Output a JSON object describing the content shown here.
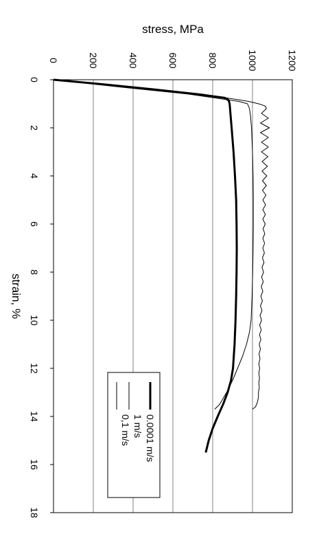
{
  "chart_data": {
    "type": "line",
    "orientation": "rotated-90-clockwise",
    "xlabel": "strain,  %",
    "ylabel": "stress,  MPa",
    "xlim": [
      0,
      18
    ],
    "ylim": [
      0,
      1200
    ],
    "xticks": [
      "0",
      "2",
      "4",
      "6",
      "8",
      "10",
      "12",
      "14",
      "16",
      "18"
    ],
    "yticks": [
      "0",
      "200",
      "400",
      "600",
      "800",
      "1000",
      "1200"
    ],
    "grid": true,
    "legend_position": "lower-right",
    "series": [
      {
        "name": "0.0001 m/s",
        "style": "thick",
        "x": [
          0,
          0.2,
          0.4,
          0.6,
          0.75,
          0.85,
          1.0,
          2.0,
          3.0,
          4.0,
          5.0,
          6.0,
          7.0,
          8.0,
          9.0,
          10.0,
          11.0,
          12.0,
          12.5,
          13.0,
          13.5,
          14.0,
          14.5,
          15.0,
          15.5
        ],
        "y": [
          0,
          260,
          500,
          720,
          860,
          880,
          885,
          895,
          905,
          912,
          918,
          920,
          921,
          920,
          918,
          915,
          910,
          902,
          892,
          875,
          852,
          825,
          800,
          780,
          765
        ]
      },
      {
        "name": "1 m/s",
        "style": "thin",
        "x": [
          0,
          0.3,
          0.6,
          0.9,
          1.0,
          1.05,
          1.1,
          1.2,
          1.4,
          1.6,
          1.8,
          2.0,
          2.2,
          2.4,
          2.6,
          2.8,
          3.0,
          3.2,
          3.4,
          3.6,
          3.8,
          4.0,
          4.2,
          4.4,
          4.6,
          4.8,
          5.0,
          5.2,
          5.4,
          5.6,
          5.8,
          6.0,
          6.2,
          6.4,
          6.6,
          6.8,
          7.0,
          7.2,
          7.4,
          7.6,
          7.8,
          8.0,
          8.2,
          8.4,
          8.6,
          8.8,
          9.0,
          9.2,
          9.4,
          9.6,
          9.8,
          10.0,
          10.2,
          10.4,
          10.6,
          10.8,
          11.0,
          11.2,
          11.4,
          11.6,
          11.8,
          12.0,
          12.2,
          12.4,
          12.6,
          12.8,
          13.0,
          13.2,
          13.4,
          13.6,
          13.7
        ],
        "y": [
          0,
          380,
          750,
          980,
          1030,
          1050,
          1065,
          1070,
          1045,
          1080,
          1040,
          1085,
          1040,
          1080,
          1045,
          1080,
          1045,
          1078,
          1048,
          1075,
          1048,
          1072,
          1050,
          1070,
          1050,
          1068,
          1052,
          1066,
          1052,
          1065,
          1052,
          1064,
          1053,
          1062,
          1052,
          1061,
          1052,
          1060,
          1050,
          1058,
          1048,
          1056,
          1046,
          1054,
          1044,
          1052,
          1042,
          1050,
          1040,
          1048,
          1038,
          1046,
          1036,
          1044,
          1035,
          1042,
          1034,
          1040,
          1033,
          1038,
          1032,
          1036,
          1032,
          1035,
          1032,
          1034,
          1030,
          1030,
          1025,
          1015,
          1000
        ]
      },
      {
        "name": "0,1 m/s",
        "style": "thin",
        "x": [
          0,
          0.3,
          0.6,
          0.9,
          1.0,
          1.2,
          1.5,
          2.0,
          3.0,
          4.0,
          5.0,
          6.0,
          7.0,
          8.0,
          9.0,
          10.0,
          10.5,
          11.0,
          11.5,
          12.0,
          12.5,
          13.0,
          13.5,
          13.7
        ],
        "y": [
          0,
          330,
          680,
          930,
          975,
          985,
          990,
          995,
          1000,
          1003,
          1004,
          1004,
          1003,
          1001,
          998,
          993,
          985,
          970,
          950,
          925,
          900,
          870,
          835,
          810
        ]
      }
    ]
  }
}
